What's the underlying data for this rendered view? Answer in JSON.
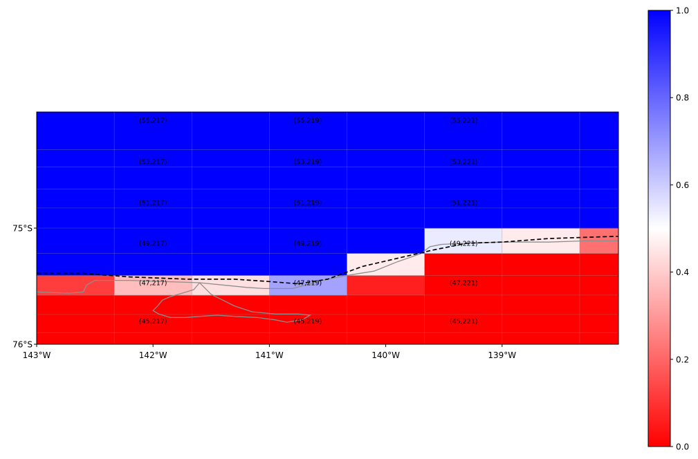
{
  "map": {
    "title": "",
    "extent": {
      "lon_min": -143.0,
      "lon_max": -138.0,
      "lat_min": -76.0,
      "lat_max": -74.0
    },
    "x_tick_labels": [
      {
        "lon": -143,
        "label": "143°W"
      },
      {
        "lon": -142,
        "label": "142°W"
      },
      {
        "lon": -141,
        "label": "141°W"
      },
      {
        "lon": -140,
        "label": "140°W"
      },
      {
        "lon": -139,
        "label": "139°W"
      }
    ],
    "y_tick_labels": [
      {
        "lat": -75,
        "label": "75°S"
      },
      {
        "lat": -76,
        "label": "76°S"
      }
    ],
    "grid_lines": {
      "lons": [
        -142.3333,
        -141.6667,
        -141.0,
        -140.3333,
        -139.6667,
        -139.0,
        -138.3333
      ],
      "lats": [
        -75.9,
        -75.7433,
        -75.5767,
        -75.4067,
        -75.2167,
        -75.0,
        -74.8267,
        -74.6633,
        -74.4733,
        -74.3233
      ]
    }
  },
  "chart_data": {
    "type": "heatmap",
    "title": "",
    "xlabel": "",
    "ylabel": "",
    "colormap": "bwr_r",
    "color_low": "#ff0000",
    "color_mid": "#ffffff",
    "color_high": "#0000ff",
    "vmin": 0.0,
    "vmax": 1.0,
    "colorbar_ticks": [
      "0.0",
      "0.2",
      "0.4",
      "0.6",
      "0.8",
      "1.0"
    ],
    "cells": [
      {
        "lon": [
          -143.0,
          -142.3333
        ],
        "lat": [
          -76.0,
          -75.5767
        ],
        "value": 0.0
      },
      {
        "lon": [
          -142.3333,
          -141.6667
        ],
        "lat": [
          -76.0,
          -75.5767
        ],
        "value": 0.0
      },
      {
        "lon": [
          -141.6667,
          -141.0
        ],
        "lat": [
          -76.0,
          -75.5767
        ],
        "value": 0.0
      },
      {
        "lon": [
          -141.0,
          -140.3333
        ],
        "lat": [
          -76.0,
          -75.5767
        ],
        "value": 0.0
      },
      {
        "lon": [
          -140.3333,
          -139.6667
        ],
        "lat": [
          -76.0,
          -75.5767
        ],
        "value": 0.0
      },
      {
        "lon": [
          -139.6667,
          -139.0
        ],
        "lat": [
          -76.0,
          -75.5767
        ],
        "value": 0.0
      },
      {
        "lon": [
          -139.0,
          -138.3333
        ],
        "lat": [
          -76.0,
          -75.5767
        ],
        "value": 0.0
      },
      {
        "lon": [
          -138.3333,
          -138.0
        ],
        "lat": [
          -76.0,
          -75.5767
        ],
        "value": 0.0
      },
      {
        "lon": [
          -143.0,
          -142.3333
        ],
        "lat": [
          -75.5767,
          -75.4067
        ],
        "value": 0.12
      },
      {
        "lon": [
          -142.3333,
          -141.6667
        ],
        "lat": [
          -75.5767,
          -75.4067
        ],
        "value": 0.37
      },
      {
        "lon": [
          -141.6667,
          -141.0
        ],
        "lat": [
          -75.5767,
          -75.4067
        ],
        "value": 0.44
      },
      {
        "lon": [
          -141.0,
          -140.3333
        ],
        "lat": [
          -75.5767,
          -75.4067
        ],
        "value": 0.68
      },
      {
        "lon": [
          -140.3333,
          -139.6667
        ],
        "lat": [
          -75.5767,
          -75.4067
        ],
        "value": 0.06
      },
      {
        "lon": [
          -139.6667,
          -139.0
        ],
        "lat": [
          -75.5767,
          -75.4067
        ],
        "value": 0.0
      },
      {
        "lon": [
          -139.0,
          -138.3333
        ],
        "lat": [
          -75.5767,
          -75.4067
        ],
        "value": 0.0
      },
      {
        "lon": [
          -138.3333,
          -138.0
        ],
        "lat": [
          -75.5767,
          -75.4067
        ],
        "value": 0.0
      },
      {
        "lon": [
          -143.0,
          -142.3333
        ],
        "lat": [
          -75.4067,
          -75.2167
        ],
        "value": 1.0
      },
      {
        "lon": [
          -142.3333,
          -141.6667
        ],
        "lat": [
          -75.4067,
          -75.2167
        ],
        "value": 1.0
      },
      {
        "lon": [
          -141.6667,
          -141.0
        ],
        "lat": [
          -75.4067,
          -75.2167
        ],
        "value": 1.0
      },
      {
        "lon": [
          -141.0,
          -140.3333
        ],
        "lat": [
          -75.4067,
          -75.2167
        ],
        "value": 1.0
      },
      {
        "lon": [
          -140.3333,
          -139.6667
        ],
        "lat": [
          -75.4067,
          -75.2167
        ],
        "value": 0.46
      },
      {
        "lon": [
          -139.6667,
          -139.0
        ],
        "lat": [
          -75.4067,
          -75.2167
        ],
        "value": 0.0
      },
      {
        "lon": [
          -139.0,
          -138.3333
        ],
        "lat": [
          -75.4067,
          -75.2167
        ],
        "value": 0.0
      },
      {
        "lon": [
          -138.3333,
          -138.0
        ],
        "lat": [
          -75.4067,
          -75.2167
        ],
        "value": 0.0
      },
      {
        "lon": [
          -143.0,
          -142.3333
        ],
        "lat": [
          -75.2167,
          -75.0
        ],
        "value": 1.0
      },
      {
        "lon": [
          -142.3333,
          -141.6667
        ],
        "lat": [
          -75.2167,
          -75.0
        ],
        "value": 1.0
      },
      {
        "lon": [
          -141.6667,
          -141.0
        ],
        "lat": [
          -75.2167,
          -75.0
        ],
        "value": 1.0
      },
      {
        "lon": [
          -141.0,
          -140.3333
        ],
        "lat": [
          -75.2167,
          -75.0
        ],
        "value": 1.0
      },
      {
        "lon": [
          -140.3333,
          -139.6667
        ],
        "lat": [
          -75.2167,
          -75.0
        ],
        "value": 1.0
      },
      {
        "lon": [
          -139.6667,
          -139.0
        ],
        "lat": [
          -75.2167,
          -75.0
        ],
        "value": 0.54
      },
      {
        "lon": [
          -139.0,
          -138.3333
        ],
        "lat": [
          -75.2167,
          -75.0
        ],
        "value": 0.46
      },
      {
        "lon": [
          -138.3333,
          -138.0
        ],
        "lat": [
          -75.2167,
          -75.0
        ],
        "value": 0.22
      },
      {
        "lon": [
          -143.0,
          -138.0
        ],
        "lat": [
          -75.0,
          -74.0
        ],
        "value": 1.0
      }
    ],
    "cell_labels": [
      {
        "text": "(55,217)",
        "lon": -142.0,
        "lat": -74.07
      },
      {
        "text": "(55,219)",
        "lon": -140.67,
        "lat": -74.07
      },
      {
        "text": "(55,221)",
        "lon": -139.33,
        "lat": -74.07
      },
      {
        "text": "(53,217)",
        "lon": -142.0,
        "lat": -74.43
      },
      {
        "text": "(53,219)",
        "lon": -140.67,
        "lat": -74.43
      },
      {
        "text": "(53,221)",
        "lon": -139.33,
        "lat": -74.43
      },
      {
        "text": "(51,217)",
        "lon": -142.0,
        "lat": -74.78
      },
      {
        "text": "(51,219)",
        "lon": -140.67,
        "lat": -74.78
      },
      {
        "text": "(51,221)",
        "lon": -139.33,
        "lat": -74.78
      },
      {
        "text": "(49,217)",
        "lon": -142.0,
        "lat": -75.13
      },
      {
        "text": "(49,219)",
        "lon": -140.67,
        "lat": -75.13
      },
      {
        "text": "(49,221)",
        "lon": -139.33,
        "lat": -75.13
      },
      {
        "text": "(47,217)",
        "lon": -142.0,
        "lat": -75.47
      },
      {
        "text": "(47,219)",
        "lon": -140.67,
        "lat": -75.47
      },
      {
        "text": "(47,221)",
        "lon": -139.33,
        "lat": -75.47
      },
      {
        "text": "(45,217)",
        "lon": -142.0,
        "lat": -75.8
      },
      {
        "text": "(45,219)",
        "lon": -140.67,
        "lat": -75.8
      },
      {
        "text": "(45,221)",
        "lon": -139.33,
        "lat": -75.8
      }
    ],
    "dashed_line": [
      [
        -143.0,
        -75.39
      ],
      [
        -142.6,
        -75.39
      ],
      [
        -142.2,
        -75.42
      ],
      [
        -141.7,
        -75.44
      ],
      [
        -141.3,
        -75.44
      ],
      [
        -141.0,
        -75.46
      ],
      [
        -140.75,
        -75.48
      ],
      [
        -140.5,
        -75.44
      ],
      [
        -140.2,
        -75.33
      ],
      [
        -139.9,
        -75.26
      ],
      [
        -139.6,
        -75.19
      ],
      [
        -139.3,
        -75.13
      ],
      [
        -139.0,
        -75.12
      ],
      [
        -138.6,
        -75.09
      ],
      [
        -138.3,
        -75.08
      ],
      [
        -138.0,
        -75.07
      ]
    ],
    "coastline": [
      [
        -143.0,
        -75.55
      ],
      [
        -142.72,
        -75.56
      ],
      [
        -142.6,
        -75.55
      ],
      [
        -142.57,
        -75.49
      ],
      [
        -142.5,
        -75.45
      ],
      [
        -142.2,
        -75.45
      ],
      [
        -141.9,
        -75.46
      ],
      [
        -141.6,
        -75.47
      ],
      [
        -141.4,
        -75.49
      ],
      [
        -141.2,
        -75.51
      ],
      [
        -141.05,
        -75.52
      ],
      [
        -140.8,
        -75.52
      ],
      [
        -140.65,
        -75.48
      ],
      [
        -140.55,
        -75.45
      ],
      [
        -140.35,
        -75.41
      ],
      [
        -140.1,
        -75.37
      ],
      [
        -139.9,
        -75.29
      ],
      [
        -139.7,
        -75.22
      ],
      [
        -139.62,
        -75.16
      ],
      [
        -139.52,
        -75.14
      ],
      [
        -139.3,
        -75.13
      ],
      [
        -139.0,
        -75.12
      ],
      [
        -138.6,
        -75.12
      ],
      [
        -138.3,
        -75.11
      ],
      [
        -138.0,
        -75.11
      ]
    ],
    "coastline_peninsula": [
      [
        -141.6,
        -75.47
      ],
      [
        -141.65,
        -75.53
      ],
      [
        -141.75,
        -75.56
      ],
      [
        -141.85,
        -75.59
      ],
      [
        -141.92,
        -75.62
      ],
      [
        -141.96,
        -75.67
      ],
      [
        -142.0,
        -75.71
      ],
      [
        -141.95,
        -75.74
      ],
      [
        -141.85,
        -75.77
      ],
      [
        -141.72,
        -75.77
      ],
      [
        -141.6,
        -75.76
      ],
      [
        -141.45,
        -75.75
      ],
      [
        -141.3,
        -75.76
      ],
      [
        -141.1,
        -75.77
      ],
      [
        -140.95,
        -75.79
      ],
      [
        -140.85,
        -75.81
      ],
      [
        -140.72,
        -75.79
      ],
      [
        -140.65,
        -75.75
      ],
      [
        -140.75,
        -75.74
      ],
      [
        -140.95,
        -75.74
      ],
      [
        -141.15,
        -75.72
      ],
      [
        -141.3,
        -75.67
      ],
      [
        -141.4,
        -75.62
      ],
      [
        -141.5,
        -75.57
      ],
      [
        -141.55,
        -75.52
      ],
      [
        -141.6,
        -75.47
      ]
    ]
  }
}
